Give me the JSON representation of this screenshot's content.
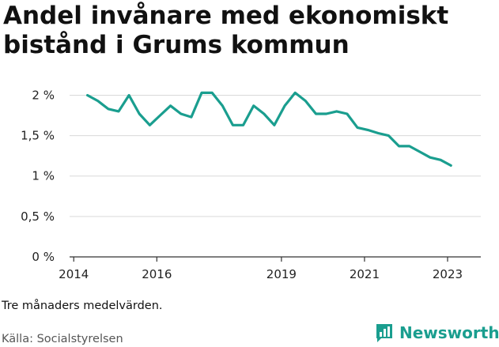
{
  "colors": {
    "line": "#1a9e8f",
    "grid": "#d9d9d9",
    "axis": "#333333",
    "brand": "#1a9e8f"
  },
  "footer": {
    "note": "Tre månaders medelvärden.",
    "source": "Källa: Socialstyrelsen",
    "brand": "Newsworthy",
    "brand_icon": "chart-bars-icon"
  },
  "chart_data": {
    "type": "line",
    "title": "Andel invånare med ekonomiskt bistånd i Grums kommun",
    "xlabel": "",
    "ylabel": "",
    "xlim": [
      2013.9,
      2023.8
    ],
    "ylim": [
      0,
      2.2
    ],
    "grid": true,
    "y_ticks": [
      {
        "value": 0,
        "label": "0 %"
      },
      {
        "value": 0.5,
        "label": "0,5 %"
      },
      {
        "value": 1,
        "label": "1 %"
      },
      {
        "value": 1.5,
        "label": "1,5 %"
      },
      {
        "value": 2,
        "label": "2 %"
      }
    ],
    "x_ticks": [
      {
        "value": 2014,
        "label": "2014"
      },
      {
        "value": 2016,
        "label": "2016"
      },
      {
        "value": 2019,
        "label": "2019"
      },
      {
        "value": 2021,
        "label": "2021"
      },
      {
        "value": 2023,
        "label": "2023"
      }
    ],
    "series": [
      {
        "x": [
          2014.33,
          2014.58,
          2014.83,
          2015.08,
          2015.33,
          2015.58,
          2015.83,
          2016.08,
          2016.33,
          2016.58,
          2016.83,
          2017.08,
          2017.33,
          2017.58,
          2017.83,
          2018.08,
          2018.33,
          2018.58,
          2018.83,
          2019.08,
          2019.33,
          2019.58,
          2019.83,
          2020.08,
          2020.33,
          2020.58,
          2020.83,
          2021.08,
          2021.33,
          2021.58,
          2021.83,
          2022.08,
          2022.33,
          2022.58,
          2022.83,
          2023.08
        ],
        "values": [
          2.0,
          1.93,
          1.83,
          1.8,
          2.0,
          1.77,
          1.63,
          1.75,
          1.87,
          1.77,
          1.73,
          2.03,
          2.03,
          1.87,
          1.63,
          1.63,
          1.87,
          1.77,
          1.63,
          1.87,
          2.03,
          1.93,
          1.77,
          1.77,
          1.8,
          1.77,
          1.6,
          1.57,
          1.53,
          1.5,
          1.37,
          1.37,
          1.3,
          1.23,
          1.2,
          1.13
        ]
      }
    ]
  }
}
